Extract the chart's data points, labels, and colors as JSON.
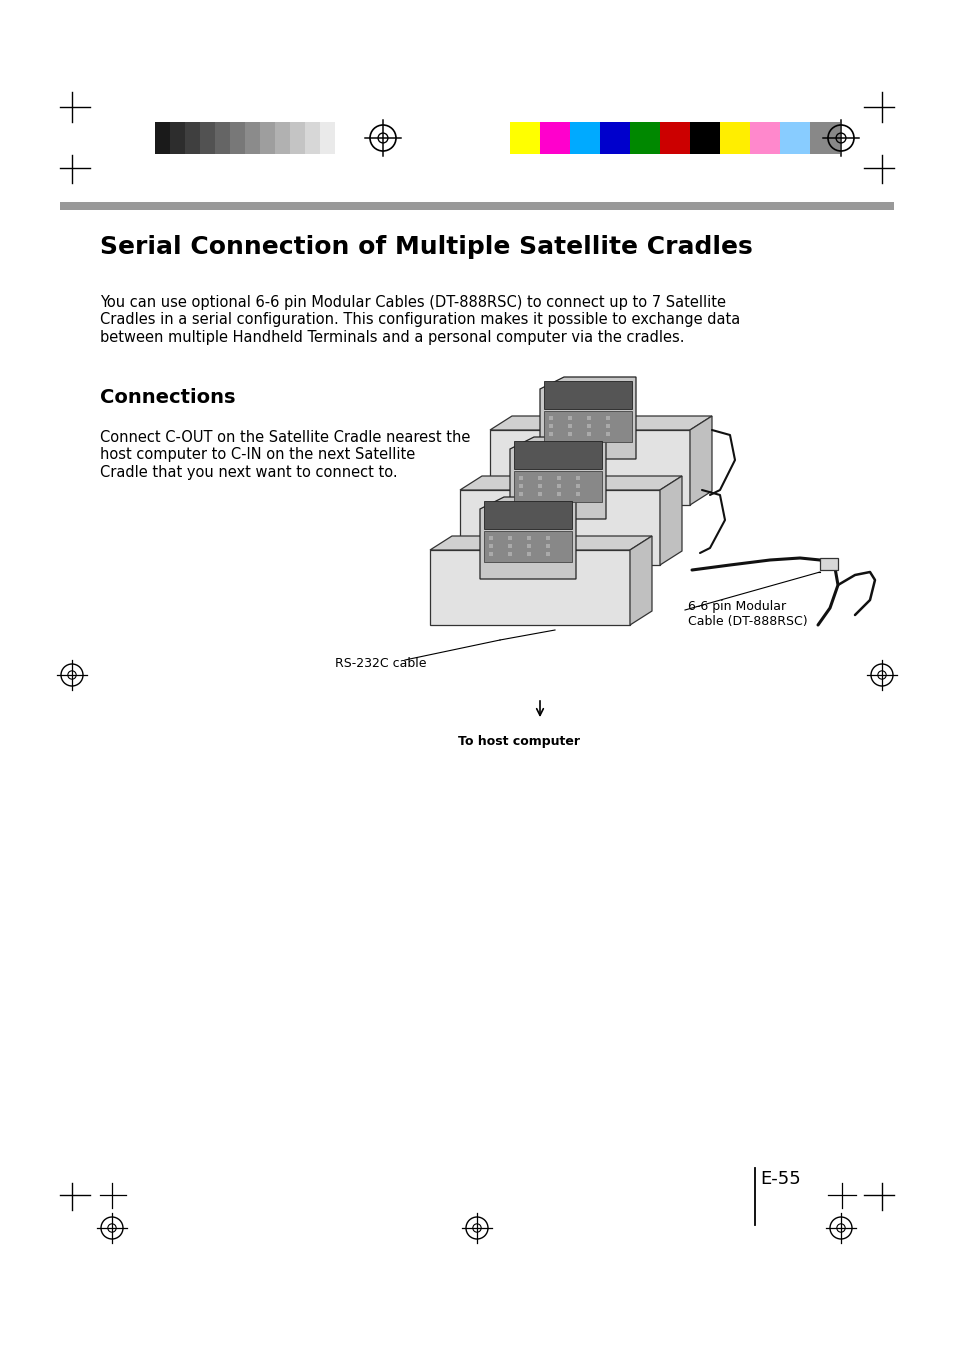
{
  "page_title": "Serial Connection of Multiple Satellite Cradles",
  "body_text": "You can use optional 6-6 pin Modular Cables (DT-888RSC) to connect up to 7 Satellite\nCradles in a serial configuration. This configuration makes it possible to exchange data\nbetween multiple Handheld Terminals and a personal computer via the cradles.",
  "section_title": "Connections",
  "section_text": "Connect C-OUT on the Satellite Cradle nearest the\nhost computer to C-IN on the next Satellite\nCradle that you next want to connect to.",
  "label1": "6-6 pin Modular\nCable (DT-888RSC)",
  "label2": "RS-232C cable",
  "label3": "To host computer",
  "page_number": "E-55",
  "bg_color": "#ffffff",
  "text_color": "#000000",
  "gray_bar_color": "#999999",
  "title_fontsize": 18,
  "body_fontsize": 10.5,
  "section_title_fontsize": 14,
  "section_text_fontsize": 10.5,
  "label_fontsize": 9,
  "page_num_fontsize": 13,
  "grayscale_colors": [
    "#1a1a1a",
    "#2d2d2d",
    "#3f3f3f",
    "#525252",
    "#656565",
    "#787878",
    "#8b8b8b",
    "#9e9e9e",
    "#b1b1b1",
    "#c4c4c4",
    "#d7d7d7",
    "#eaeaea",
    "#ffffff"
  ],
  "swatch_colors": [
    "#ffff00",
    "#ff00cc",
    "#00aaff",
    "#0000cc",
    "#008800",
    "#cc0000",
    "#000000",
    "#ffee00",
    "#ff88cc",
    "#88ccff",
    "#888888"
  ]
}
